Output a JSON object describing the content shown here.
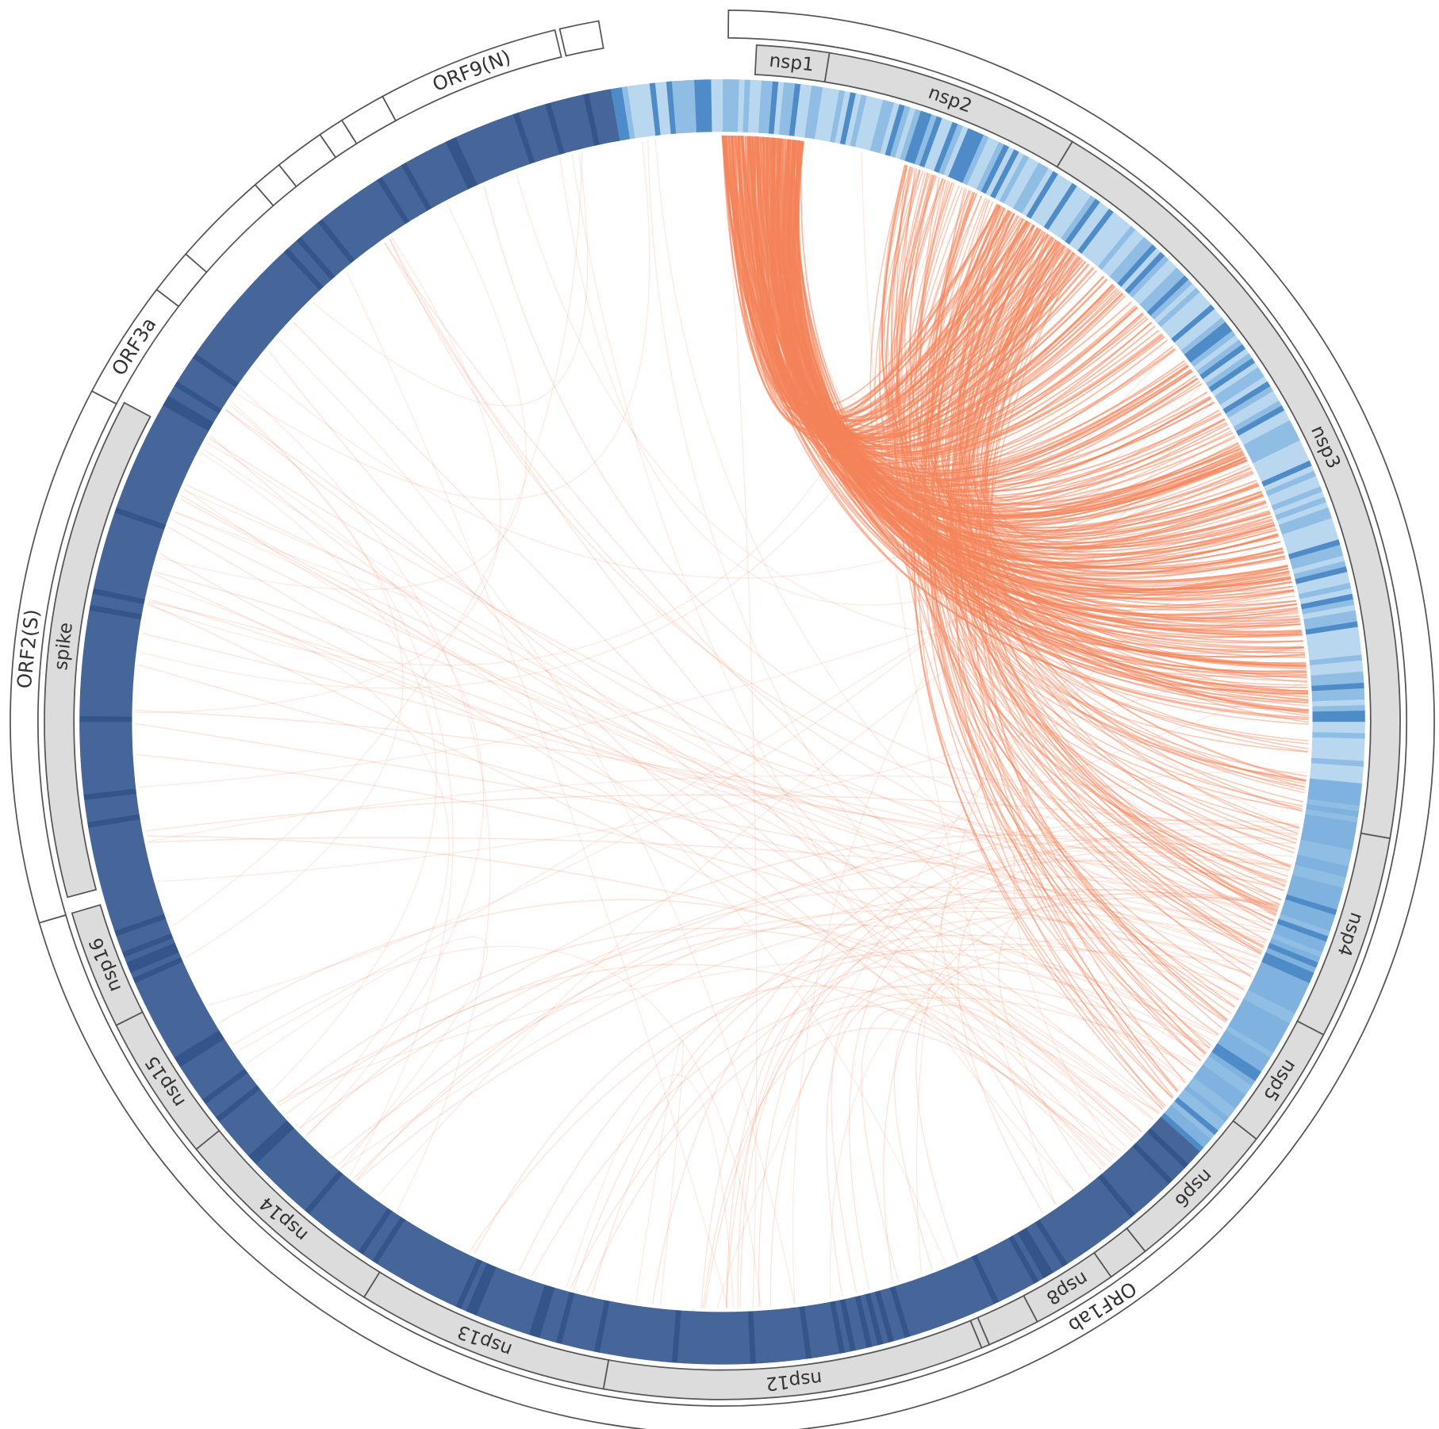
{
  "genes": [
    "ORF1ab",
    "ORF2(S)",
    "ORF3a",
    "ORF9(N)"
  ],
  "proteins": [
    "nsp1",
    "nsp2",
    "nsp3",
    "nsp4",
    "nsp5",
    "nsp6",
    "nsp8",
    "nsp12",
    "nsp13",
    "nsp14",
    "nsp15",
    "nsp16",
    "spike"
  ]
}
